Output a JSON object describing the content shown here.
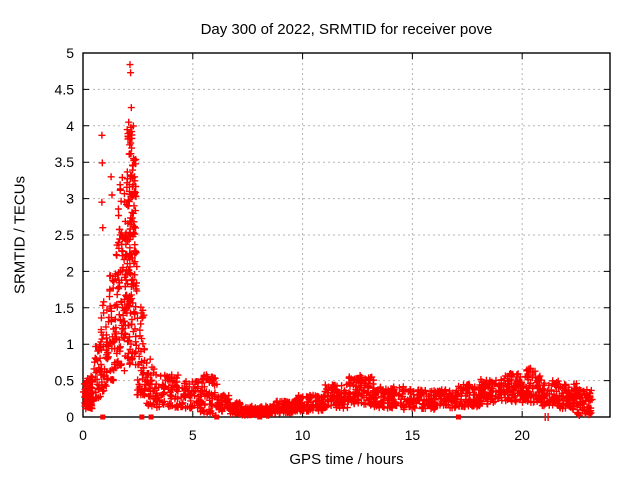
{
  "chart_data": {
    "type": "scatter",
    "title": "Day 300 of 2022, SRMTID for receiver pove",
    "xlabel": "GPS time / hours",
    "ylabel": "SRMTID / TECUs",
    "xlim": [
      0,
      24
    ],
    "ylim": [
      0,
      5
    ],
    "xticks": [
      0,
      5,
      10,
      15,
      20
    ],
    "xtick_labels": [
      "0",
      "5",
      "10",
      "15",
      "20"
    ],
    "yticks": [
      0,
      0.5,
      1,
      1.5,
      2,
      2.5,
      3,
      3.5,
      4,
      4.5,
      5
    ],
    "ytick_labels": [
      "0",
      "0.5",
      "1",
      "1.5",
      "2",
      "2.5",
      "3",
      "3.5",
      "4",
      "4.5",
      "5"
    ],
    "grid": "dashed",
    "legend": "none",
    "marker": "plus",
    "marker_color": "#ff0000",
    "grid_color": "#b3b3b3",
    "border_color": "#000000",
    "seed": 20220300,
    "notable_points": [
      [
        2.14,
        4.84
      ],
      [
        2.17,
        4.73
      ],
      [
        2.2,
        4.25
      ],
      [
        2.08,
        4.05
      ],
      [
        2.18,
        3.98
      ],
      [
        2.22,
        3.92
      ],
      [
        2.12,
        3.9
      ],
      [
        0.86,
        3.87
      ],
      [
        0.88,
        3.49
      ],
      [
        0.86,
        2.95
      ],
      [
        0.9,
        2.6
      ],
      [
        1.28,
        3.3
      ],
      [
        1.32,
        3.05
      ],
      [
        2.3,
        3.55
      ],
      [
        2.28,
        3.45
      ],
      [
        2.35,
        3.3
      ],
      [
        5.62,
        0.58
      ],
      [
        5.6,
        0.52
      ],
      [
        6.05,
        0.02
      ],
      [
        8.1,
        0.02
      ],
      [
        12.62,
        0.57
      ],
      [
        20.3,
        0.66
      ],
      [
        20.35,
        0.63
      ],
      [
        22.6,
        0.02
      ],
      [
        23.05,
        0.03
      ]
    ],
    "zero_squares": [
      0.9,
      2.68,
      3.1,
      6.09,
      8.05,
      17.1
    ],
    "zero_bars": [
      21.05,
      21.18
    ],
    "point_envelope": [
      [
        0.02,
        0.12,
        10,
        0.15,
        0.5,
        1.2
      ],
      [
        0.1,
        0.5,
        70,
        0.1,
        0.58,
        1.3
      ],
      [
        0.5,
        0.8,
        30,
        0.25,
        1.0,
        1.3
      ],
      [
        0.8,
        1.1,
        40,
        0.35,
        1.6,
        1.4
      ],
      [
        1.1,
        1.5,
        55,
        0.5,
        2.0,
        1.3
      ],
      [
        1.5,
        1.9,
        60,
        0.6,
        2.5,
        1.1
      ],
      [
        1.55,
        1.95,
        14,
        2.5,
        3.35,
        1.2
      ],
      [
        1.9,
        2.45,
        150,
        0.7,
        3.1,
        0.95
      ],
      [
        1.95,
        2.4,
        35,
        3.1,
        4.05,
        1.2
      ],
      [
        2.45,
        2.85,
        45,
        0.3,
        1.55,
        1.4
      ],
      [
        2.85,
        3.35,
        40,
        0.15,
        0.8,
        1.4
      ],
      [
        3.35,
        4.35,
        70,
        0.12,
        0.58,
        1.3
      ],
      [
        4.35,
        5.35,
        60,
        0.12,
        0.5,
        1.3
      ],
      [
        5.35,
        6.15,
        65,
        0.04,
        0.58,
        1.2
      ],
      [
        6.15,
        6.7,
        40,
        0.08,
        0.32,
        1.2
      ],
      [
        6.7,
        7.25,
        45,
        0.04,
        0.2,
        1.1
      ],
      [
        7.25,
        8.65,
        100,
        0.02,
        0.15,
        1.1
      ],
      [
        8.65,
        9.7,
        80,
        0.05,
        0.22,
        1.1
      ],
      [
        9.7,
        11.0,
        100,
        0.08,
        0.3,
        1.1
      ],
      [
        11.0,
        12.1,
        85,
        0.12,
        0.45,
        1.1
      ],
      [
        12.1,
        13.25,
        100,
        0.16,
        0.56,
        1.0
      ],
      [
        13.25,
        14.6,
        95,
        0.12,
        0.42,
        1.1
      ],
      [
        14.6,
        16.1,
        100,
        0.1,
        0.38,
        1.1
      ],
      [
        16.1,
        17.1,
        70,
        0.12,
        0.38,
        1.1
      ],
      [
        17.1,
        18.1,
        75,
        0.14,
        0.46,
        1.1
      ],
      [
        18.1,
        19.1,
        80,
        0.17,
        0.52,
        1.0
      ],
      [
        19.1,
        20.1,
        85,
        0.2,
        0.6,
        1.0
      ],
      [
        20.1,
        20.9,
        65,
        0.2,
        0.67,
        1.0
      ],
      [
        20.9,
        21.7,
        60,
        0.14,
        0.5,
        1.1
      ],
      [
        21.7,
        22.5,
        65,
        0.1,
        0.46,
        1.1
      ],
      [
        22.5,
        23.2,
        60,
        0.04,
        0.38,
        1.1
      ]
    ]
  }
}
